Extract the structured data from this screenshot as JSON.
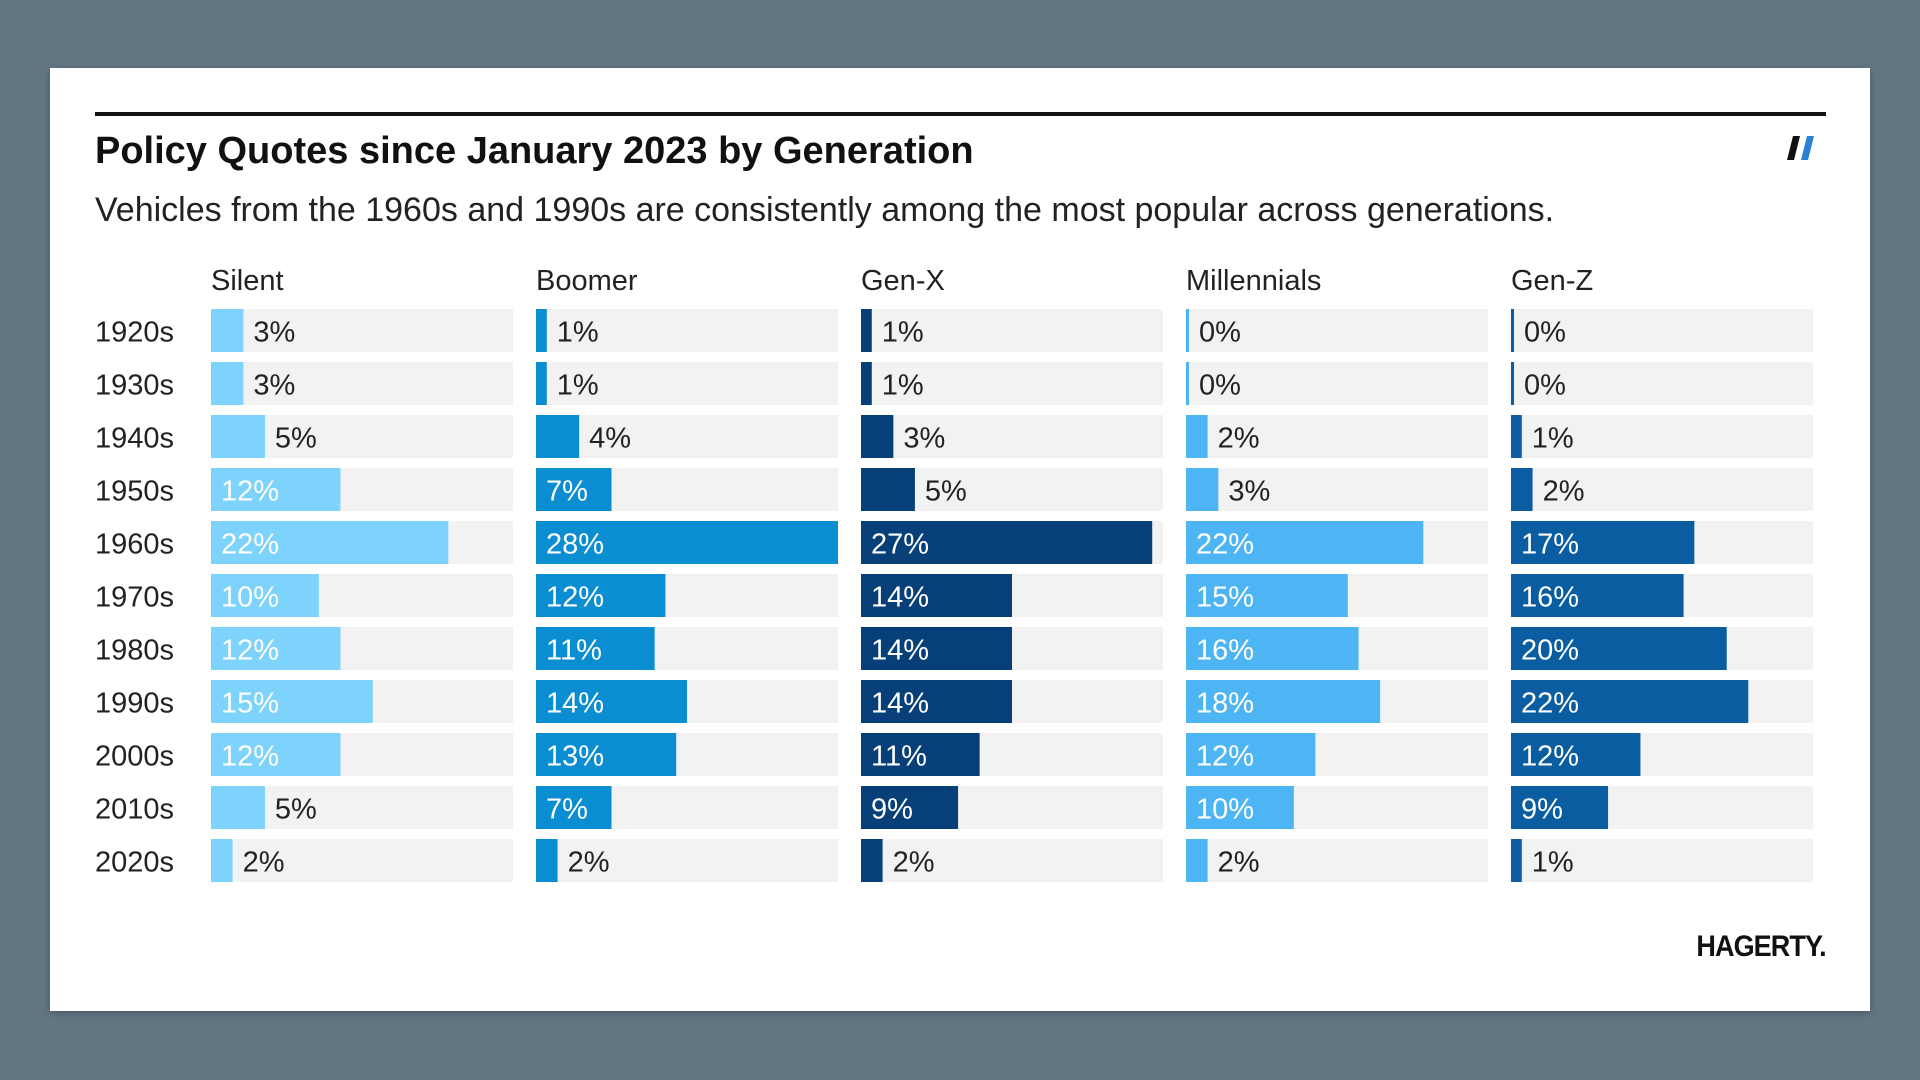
{
  "title": "Policy Quotes since January 2023 by Generation",
  "subtitle": "Vehicles from the 1960s and 1990s are consistently among the most popular across generations.",
  "logo": "HAGERTY.",
  "icons": {
    "brand_mark": "axios-slash-icon"
  },
  "colors": {
    "Silent": "#7dd3fb",
    "Boomer": "#0a8ed1",
    "Gen-X": "#073f78",
    "Millennials": "#4eb5f4",
    "Gen-Z": "#0a5da0",
    "track": "#f2f2f2"
  },
  "chart_data": {
    "type": "bar",
    "orientation": "horizontal",
    "layout": "small-multiples",
    "categories": [
      "1920s",
      "1930s",
      "1940s",
      "1950s",
      "1960s",
      "1970s",
      "1980s",
      "1990s",
      "2000s",
      "2010s",
      "2020s"
    ],
    "xlim": [
      0,
      28
    ],
    "grid": false,
    "series": [
      {
        "name": "Silent",
        "values": [
          3,
          3,
          5,
          12,
          22,
          10,
          12,
          15,
          12,
          5,
          2
        ]
      },
      {
        "name": "Boomer",
        "values": [
          1,
          1,
          4,
          7,
          28,
          12,
          11,
          14,
          13,
          7,
          2
        ]
      },
      {
        "name": "Gen-X",
        "values": [
          1,
          1,
          3,
          5,
          27,
          14,
          14,
          14,
          11,
          9,
          2
        ]
      },
      {
        "name": "Millennials",
        "values": [
          0,
          0,
          2,
          3,
          22,
          15,
          16,
          18,
          12,
          10,
          2
        ]
      },
      {
        "name": "Gen-Z",
        "values": [
          0,
          0,
          1,
          2,
          17,
          16,
          20,
          22,
          12,
          9,
          1
        ]
      }
    ],
    "value_suffix": "%"
  }
}
